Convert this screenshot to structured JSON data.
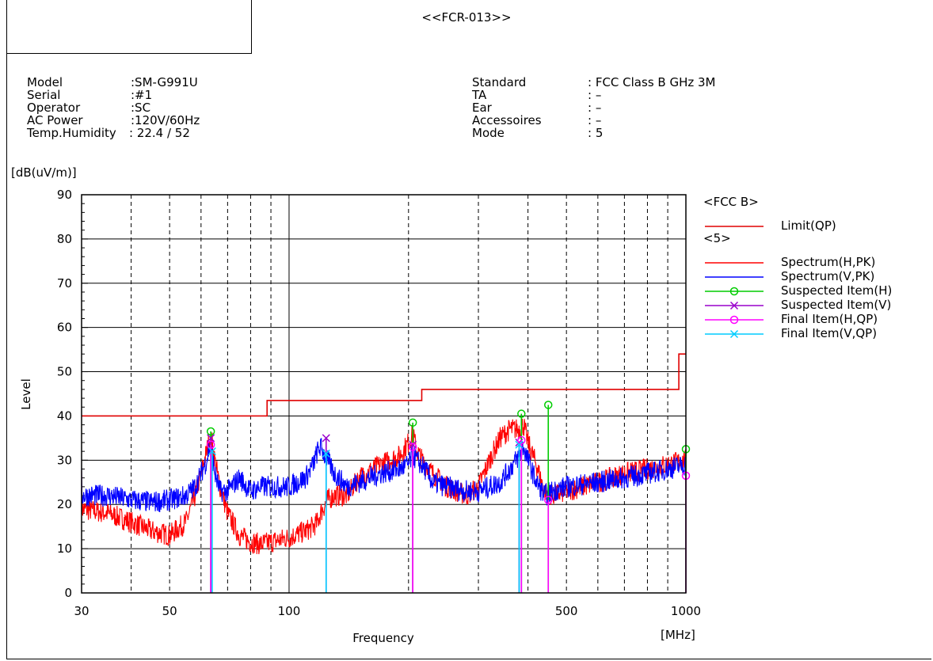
{
  "report": {
    "id": "<<FCR-013>>"
  },
  "info_left": [
    {
      "label": "Model",
      "value": ":SM-G991U"
    },
    {
      "label": "Serial",
      "value": ":#1"
    },
    {
      "label": "Operator",
      "value": ":SC"
    },
    {
      "label": "AC Power",
      "value": ":120V/60Hz"
    },
    {
      "label": "Temp.Humidity",
      "value": ": 22.4 / 52"
    }
  ],
  "info_right": [
    {
      "label": "Standard",
      "value": ": FCC Class B GHz 3M"
    },
    {
      "label": "TA",
      "value": ": –"
    },
    {
      "label": "Ear",
      "value": ": –"
    },
    {
      "label": "Accessoires",
      "value": ": –"
    },
    {
      "label": "Mode",
      "value": ": 5"
    }
  ],
  "chart_data": {
    "type": "line",
    "xscale": "log",
    "xlim": [
      30,
      1000
    ],
    "ylim": [
      0,
      90
    ],
    "xlabel": "Frequency",
    "xunit": "[MHz]",
    "ylabel": "Level",
    "yunit": "[dB(uV/m)]",
    "xticks": [
      30,
      50,
      100,
      500,
      1000
    ],
    "yticks": [
      0,
      10,
      20,
      30,
      40,
      50,
      60,
      70,
      80,
      90
    ],
    "grid": true,
    "legend_position": "right",
    "legend_groups": [
      "<FCC B>",
      "<5>"
    ],
    "colors": {
      "limit": "#e00000",
      "spectrum_h": "#ff0000",
      "spectrum_v": "#0000ff",
      "suspected_h": "#00cc00",
      "suspected_v": "#9900cc",
      "final_h": "#ff00ff",
      "final_v": "#00ccff"
    },
    "limit": {
      "name": "Limit(QP)",
      "steps": [
        {
          "from": 30,
          "to": 88,
          "value": 40
        },
        {
          "from": 88,
          "to": 216,
          "value": 43.5
        },
        {
          "from": 216,
          "to": 960,
          "value": 46
        },
        {
          "from": 960,
          "to": 1000,
          "value": 54
        }
      ]
    },
    "series": [
      {
        "name": "Spectrum(H,PK)",
        "x": [
          30,
          35,
          40,
          45,
          50,
          55,
          58,
          60,
          62,
          63,
          64,
          65,
          67,
          70,
          75,
          80,
          85,
          90,
          100,
          110,
          115,
          118,
          120,
          125,
          130,
          140,
          150,
          170,
          190,
          200,
          205,
          210,
          220,
          230,
          250,
          280,
          300,
          320,
          340,
          360,
          380,
          390,
          400,
          420,
          440,
          460,
          500,
          600,
          700,
          800,
          900,
          1000
        ],
        "y": [
          19,
          18,
          16,
          14,
          13,
          16,
          22,
          27,
          32,
          35,
          34,
          30,
          24,
          18,
          13,
          11.5,
          11,
          11.5,
          12.5,
          14,
          15,
          16,
          18,
          21,
          22,
          22,
          26,
          29,
          31,
          34,
          36,
          32,
          29,
          27,
          24,
          22,
          24,
          30,
          35,
          37,
          37,
          38,
          34,
          29,
          23,
          22,
          23,
          25,
          27,
          28,
          29,
          30
        ]
      },
      {
        "name": "Spectrum(V,PK)",
        "x": [
          30,
          35,
          40,
          45,
          50,
          55,
          58,
          60,
          62,
          63,
          64,
          65,
          67,
          70,
          75,
          80,
          85,
          90,
          100,
          110,
          115,
          118,
          120,
          125,
          130,
          140,
          150,
          170,
          190,
          200,
          205,
          210,
          220,
          230,
          250,
          280,
          300,
          320,
          340,
          360,
          380,
          390,
          400,
          420,
          440,
          460,
          500,
          600,
          700,
          800,
          900,
          1000
        ],
        "y": [
          22,
          22,
          21,
          20.5,
          21,
          22,
          24,
          27,
          30,
          33,
          31,
          27,
          23,
          23,
          26,
          23,
          24,
          24,
          24,
          26,
          29,
          32,
          33,
          30,
          27,
          24,
          25,
          27,
          28,
          29,
          31,
          30,
          28,
          25,
          24,
          23,
          23,
          24,
          25,
          28,
          31,
          33,
          30,
          25,
          22,
          23,
          24,
          25,
          26,
          27,
          28,
          29
        ]
      }
    ],
    "items": [
      {
        "name": "Suspected Item(H)",
        "marker": "circle",
        "points": [
          [
            63.5,
            36.5
          ],
          [
            205,
            38.5
          ],
          [
            385,
            40.5
          ],
          [
            450,
            42.5
          ],
          [
            1000,
            32.5
          ]
        ]
      },
      {
        "name": "Suspected Item(V)",
        "marker": "x",
        "points": [
          [
            63.5,
            35
          ],
          [
            124,
            35
          ],
          [
            205,
            33.5
          ],
          [
            380,
            34
          ]
        ]
      },
      {
        "name": "Final Item(H,QP)",
        "marker": "circle",
        "points": [
          [
            63.5,
            33.5
          ],
          [
            205,
            33
          ],
          [
            385,
            34.5
          ],
          [
            450,
            21
          ],
          [
            1000,
            26.5
          ]
        ]
      },
      {
        "name": "Final Item(V,QP)",
        "marker": "x",
        "points": [
          [
            64,
            32
          ],
          [
            124,
            31.5
          ],
          [
            380,
            33.5
          ]
        ]
      }
    ]
  }
}
